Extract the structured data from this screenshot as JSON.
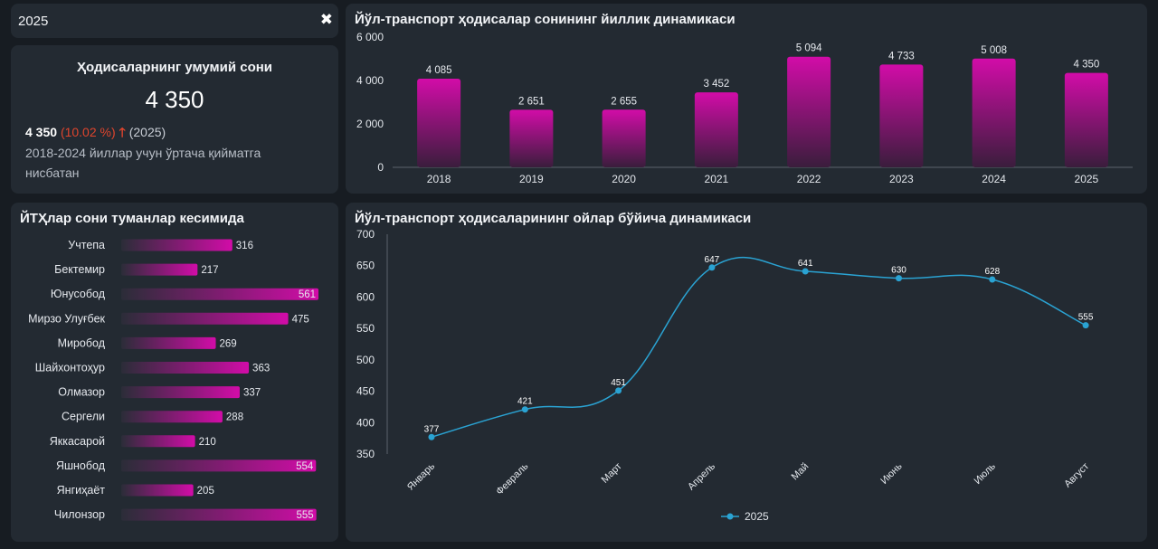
{
  "filter": {
    "value": "2025",
    "clear_icon": "close-icon"
  },
  "kpi": {
    "title": "Ҳодисаларнинг умумий сони",
    "value": "4 350",
    "compare_value": "4 350",
    "compare_pct": "(10.02 %)",
    "compare_arrow_icon": "arrow-up-icon",
    "compare_year": "(2025)",
    "description": "2018-2024 йиллар учун ўртача қийматга нисбатан"
  },
  "colors": {
    "bar_top": "#d20ca8",
    "bar_bottom": "#3a1d3c",
    "line": "#2aa3d3",
    "negative": "#e0452d"
  },
  "chart_data": [
    {
      "type": "bar",
      "title": "Йўл-транспорт ҳодисалар сонининг йиллик динамикаси",
      "categories": [
        "2018",
        "2019",
        "2020",
        "2021",
        "2022",
        "2023",
        "2024",
        "2025"
      ],
      "values": [
        4085,
        2651,
        2655,
        3452,
        5094,
        4733,
        5008,
        4350
      ],
      "value_labels": [
        "4 085",
        "2 651",
        "2 655",
        "3 452",
        "5 094",
        "4 733",
        "5 008",
        "4 350"
      ],
      "ylim": [
        0,
        6000
      ],
      "yticks": [
        0,
        2000,
        4000,
        6000
      ],
      "ytick_labels": [
        "0",
        "2 000",
        "4 000",
        "6 000"
      ]
    },
    {
      "type": "bar",
      "orientation": "horizontal",
      "title": "ЙТҲлар сони туманлар кесимида",
      "categories": [
        "Учтепа",
        "Бектемир",
        "Юнусобод",
        "Мирзо Улуғбек",
        "Миробод",
        "Шайхонтоҳур",
        "Олмазор",
        "Сергели",
        "Яккасарой",
        "Яшнобод",
        "Янгиҳаёт",
        "Чилонзор"
      ],
      "values": [
        316,
        217,
        561,
        475,
        269,
        363,
        337,
        288,
        210,
        554,
        205,
        555
      ],
      "xlim": [
        0,
        561
      ]
    },
    {
      "type": "line",
      "title": "Йўл-транспорт ҳодисаларининг ойлар бўйича динамикаси",
      "categories": [
        "Январь",
        "Февраль",
        "Март",
        "Апрель",
        "Май",
        "Июнь",
        "Июль",
        "Август"
      ],
      "series": [
        {
          "name": "2025",
          "values": [
            377,
            421,
            451,
            647,
            641,
            630,
            628,
            555
          ]
        }
      ],
      "ylim": [
        350,
        700
      ],
      "yticks": [
        350,
        400,
        450,
        500,
        550,
        600,
        650,
        700
      ],
      "legend_position": "bottom"
    }
  ]
}
